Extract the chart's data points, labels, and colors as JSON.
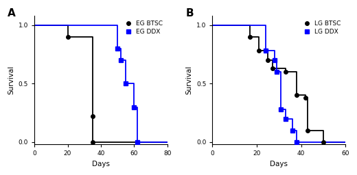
{
  "panel_A": {
    "title": "A",
    "eg_btsc": {
      "x": [
        0,
        20,
        35,
        35
      ],
      "y": [
        1.0,
        0.9,
        0.22,
        0.0
      ],
      "color": "black",
      "marker": "o",
      "label": "EG BTSC"
    },
    "eg_ddx": {
      "x": [
        0,
        50,
        52,
        55,
        60,
        62
      ],
      "y": [
        1.0,
        0.8,
        0.7,
        0.5,
        0.3,
        0.0
      ],
      "color": "blue",
      "marker": "s",
      "label": "EG DDX"
    },
    "xlim": [
      0,
      80
    ],
    "ylim": [
      -0.02,
      1.08
    ],
    "xticks": [
      0,
      20,
      40,
      60,
      80
    ],
    "yticks": [
      0.0,
      0.5,
      1.0
    ],
    "xlabel": "Days",
    "ylabel": "Survival"
  },
  "panel_B": {
    "title": "B",
    "lg_btsc": {
      "x": [
        0,
        17,
        21,
        25,
        27,
        33,
        38,
        42,
        43,
        50
      ],
      "y": [
        1.0,
        0.9,
        0.78,
        0.7,
        0.63,
        0.6,
        0.4,
        0.38,
        0.1,
        0.0
      ],
      "color": "black",
      "marker": "o",
      "label": "LG BTSC"
    },
    "lg_ddx": {
      "x": [
        0,
        24,
        28,
        29,
        31,
        33,
        36,
        38
      ],
      "y": [
        1.0,
        0.78,
        0.7,
        0.6,
        0.28,
        0.2,
        0.1,
        0.0
      ],
      "color": "blue",
      "marker": "s",
      "label": "LG DDX"
    },
    "xlim": [
      0,
      60
    ],
    "ylim": [
      -0.02,
      1.08
    ],
    "xticks": [
      0,
      20,
      40,
      60
    ],
    "yticks": [
      0.0,
      0.5,
      1.0
    ],
    "xlabel": "Days",
    "ylabel": "Survival"
  },
  "marker_size": 4,
  "linewidth": 1.3,
  "tick_fontsize": 6.5,
  "label_fontsize": 7.5,
  "legend_fontsize": 6.5,
  "title_fontsize": 11,
  "bg_color": "white"
}
